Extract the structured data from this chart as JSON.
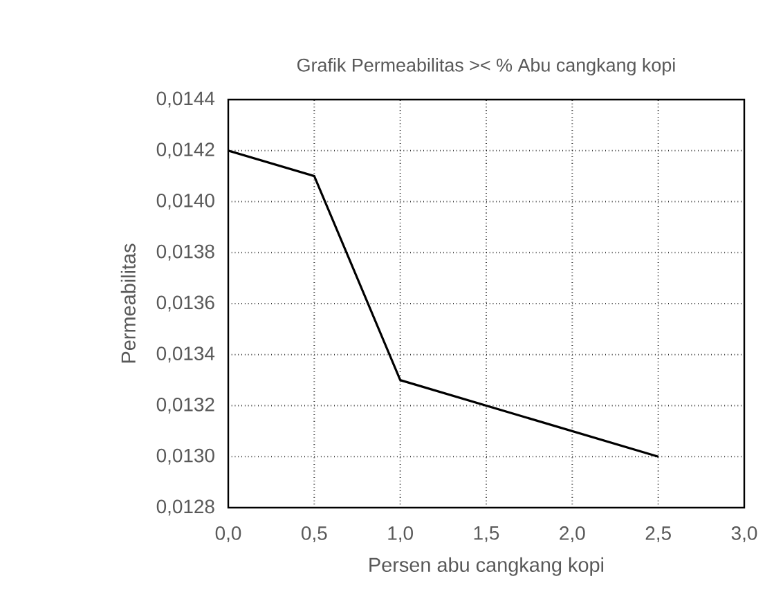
{
  "chart_data": {
    "type": "line",
    "title": "Grafik Permeabilitas >< % Abu cangkang kopi",
    "xlabel": "Persen abu cangkang kopi",
    "ylabel": "Permeabilitas",
    "x": [
      0,
      0.5,
      1,
      2.5
    ],
    "series": [
      {
        "color": "#000000",
        "values": [
          0.0142,
          0.0141,
          0.0133,
          0.013
        ]
      }
    ],
    "xlim": [
      0,
      3
    ],
    "xticks": [
      {
        "value": 0,
        "label": "0,0"
      },
      {
        "value": 0.5,
        "label": "0,5"
      },
      {
        "value": 1,
        "label": "1,0"
      },
      {
        "value": 1.5,
        "label": "1,5"
      },
      {
        "value": 2,
        "label": "2,0"
      },
      {
        "value": 2.5,
        "label": "2,5"
      },
      {
        "value": 3,
        "label": "3,0"
      }
    ],
    "ylim": [
      0.0128,
      0.0144
    ],
    "yticks": [
      {
        "value": 0.0128,
        "label": "0,0128"
      },
      {
        "value": 0.013,
        "label": "0,0130"
      },
      {
        "value": 0.0132,
        "label": "0,0132"
      },
      {
        "value": 0.0134,
        "label": "0,0134"
      },
      {
        "value": 0.0136,
        "label": "0,0136"
      },
      {
        "value": 0.0138,
        "label": "0,0138"
      },
      {
        "value": 0.014,
        "label": "0,0140"
      },
      {
        "value": 0.0142,
        "label": "0,0142"
      },
      {
        "value": 0.0144,
        "label": "0,0144"
      }
    ],
    "grid": true,
    "marker": "none",
    "line_style": "solid"
  }
}
